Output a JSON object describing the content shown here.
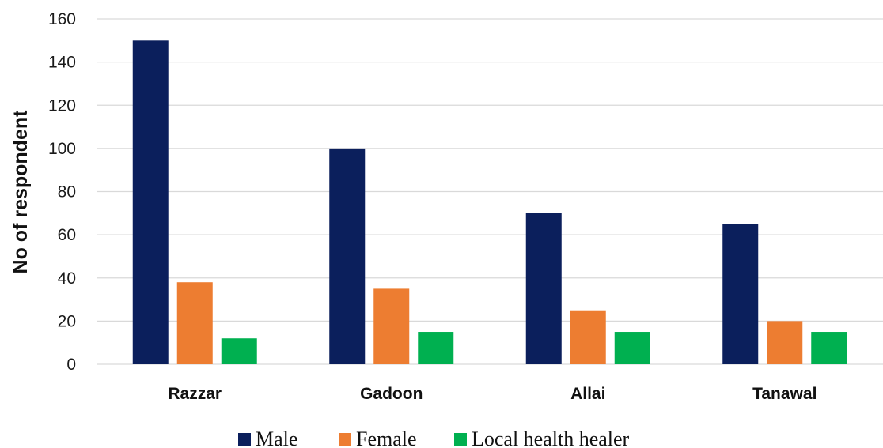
{
  "chart_data": {
    "type": "bar",
    "categories": [
      "Razzar",
      "Gadoon",
      "Allai",
      "Tanawal"
    ],
    "series": [
      {
        "name": "Male",
        "values": [
          150,
          100,
          70,
          65
        ],
        "color": "#0b1f5c"
      },
      {
        "name": "Female",
        "values": [
          38,
          35,
          25,
          20
        ],
        "color": "#ed7d31"
      },
      {
        "name": "Local health healer",
        "values": [
          12,
          15,
          15,
          15
        ],
        "color": "#00b050"
      }
    ],
    "ylabel": "No of respondent",
    "xlabel": "",
    "ylim": [
      0,
      160
    ],
    "yticks": [
      0,
      20,
      40,
      60,
      80,
      100,
      120,
      140,
      160
    ],
    "grid": true,
    "legend": "bottom"
  }
}
